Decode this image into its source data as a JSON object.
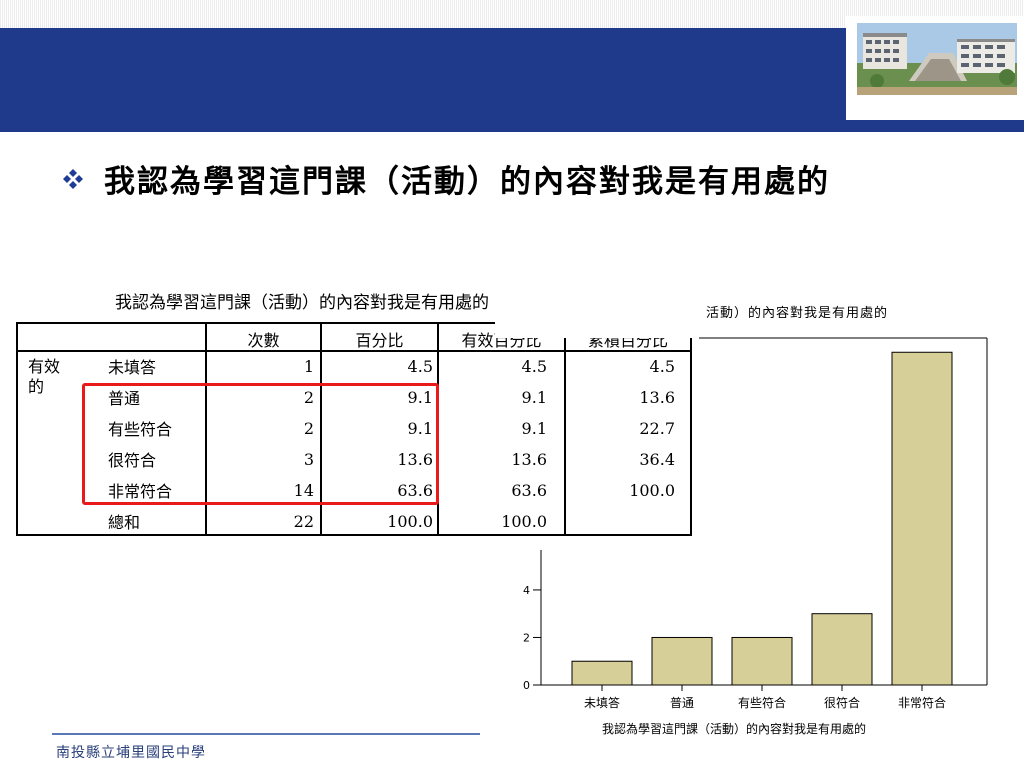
{
  "slide": {
    "title": "我認為學習這門課（活動）的內容對我是有用處的",
    "footer": "南投縣立埔里國民中學",
    "banner_color": "#1f3a8a",
    "bullet_icon": "diamond-four-icon"
  },
  "table": {
    "caption": "我認為學習這門課（活動）的內容對我是有用處的",
    "headers": [
      "次數",
      "百分比",
      "有效百分比",
      "累積百分比"
    ],
    "group_label_line1": "有效",
    "group_label_line2": "的",
    "rows": [
      {
        "label": "未填答",
        "count": "1",
        "percent": "4.5",
        "valid": "4.5",
        "cumulative": "4.5"
      },
      {
        "label": "普通",
        "count": "2",
        "percent": "9.1",
        "valid": "9.1",
        "cumulative": "13.6"
      },
      {
        "label": "有些符合",
        "count": "2",
        "percent": "9.1",
        "valid": "9.1",
        "cumulative": "22.7"
      },
      {
        "label": "很符合",
        "count": "3",
        "percent": "13.6",
        "valid": "13.6",
        "cumulative": "36.4"
      },
      {
        "label": "非常符合",
        "count": "14",
        "percent": "63.6",
        "valid": "63.6",
        "cumulative": "100.0"
      },
      {
        "label": "總和",
        "count": "22",
        "percent": "100.0",
        "valid": "100.0",
        "cumulative": ""
      }
    ],
    "highlight_color": "#e81a1a"
  },
  "chart_data": {
    "type": "bar",
    "title": "活動）的內容對我是有用處的",
    "xlabel": "我認為學習這門課（活動）的內容對我是有用處的",
    "ylabel": "",
    "categories": [
      "未填答",
      "普通",
      "有些符合",
      "很符合",
      "非常符合"
    ],
    "values": [
      1,
      2,
      2,
      3,
      14
    ],
    "yticks": [
      0,
      2,
      4
    ],
    "ylim": [
      0,
      14.6
    ],
    "bar_color": "#d6cf98",
    "grid": false
  }
}
